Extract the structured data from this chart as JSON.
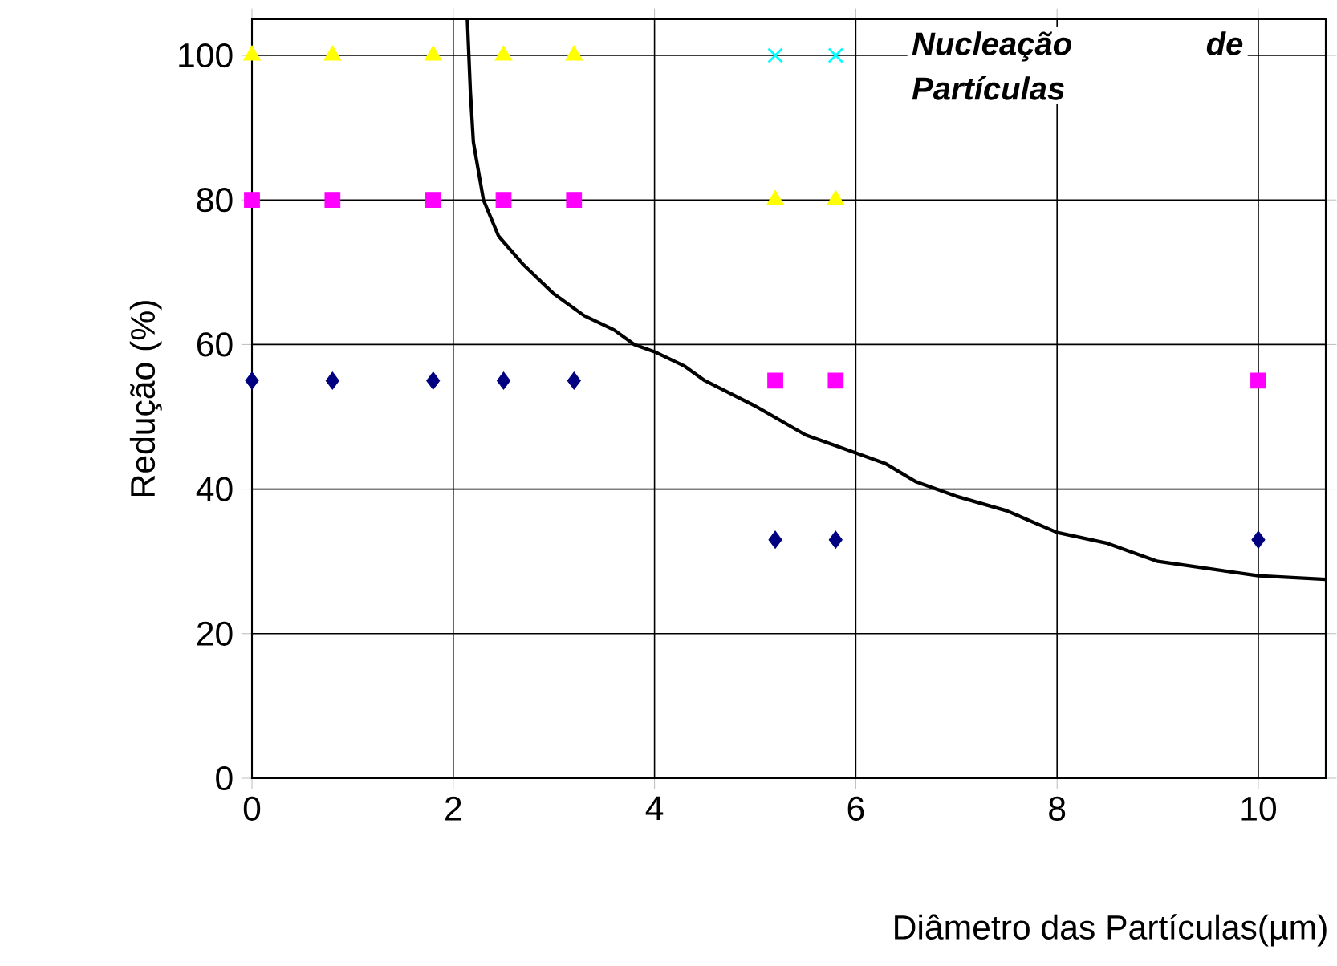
{
  "chart_data": {
    "type": "scatter",
    "xlabel": "Diâmetro das Partículas(µm)",
    "ylabel": "Redução (%)",
    "xlim": [
      0,
      10.67
    ],
    "ylim": [
      0,
      105
    ],
    "xticks": [
      0,
      2,
      4,
      6,
      8,
      10
    ],
    "yticks": [
      0,
      20,
      40,
      60,
      80,
      100
    ],
    "grid": true,
    "annotations": [
      "Nucleação de Partículas"
    ],
    "series": [
      {
        "color": "#000080",
        "marker": "diamond",
        "x": [
          0,
          0.8,
          1.8,
          2.5,
          3.2,
          5.2,
          5.8,
          10
        ],
        "values": [
          55,
          55,
          55,
          55,
          55,
          33,
          33,
          33
        ]
      },
      {
        "color": "#ff00ff",
        "marker": "square",
        "x": [
          0,
          0.8,
          1.8,
          2.5,
          3.2,
          5.2,
          5.8,
          10
        ],
        "values": [
          80,
          80,
          80,
          80,
          80,
          55,
          55,
          55
        ]
      },
      {
        "color": "#ffff00",
        "marker": "triangle",
        "x": [
          0,
          0.8,
          1.8,
          2.5,
          3.2,
          5.2,
          5.8
        ],
        "values": [
          100,
          100,
          100,
          100,
          100,
          80,
          80
        ]
      },
      {
        "color": "#00ffff",
        "marker": "cross",
        "x": [
          5.2,
          5.8
        ],
        "values": [
          100,
          100
        ]
      },
      {
        "type": "line",
        "color": "#000000",
        "marker": "none",
        "x": [
          2.14,
          2.17,
          2.2,
          2.3,
          2.45,
          2.7,
          3.0,
          3.3,
          3.6,
          3.8,
          4.0,
          4.3,
          4.5,
          5.0,
          5.5,
          5.8,
          6.3,
          6.6,
          7.0,
          7.5,
          8.0,
          8.5,
          9.0,
          9.5,
          10.0,
          10.67
        ],
        "values": [
          105,
          95,
          88,
          80,
          75,
          71,
          67,
          64,
          62,
          60,
          59,
          57,
          55,
          51.5,
          47.5,
          46,
          43.5,
          41,
          39,
          37,
          34,
          32.5,
          30,
          29,
          28,
          27.5
        ]
      }
    ]
  }
}
